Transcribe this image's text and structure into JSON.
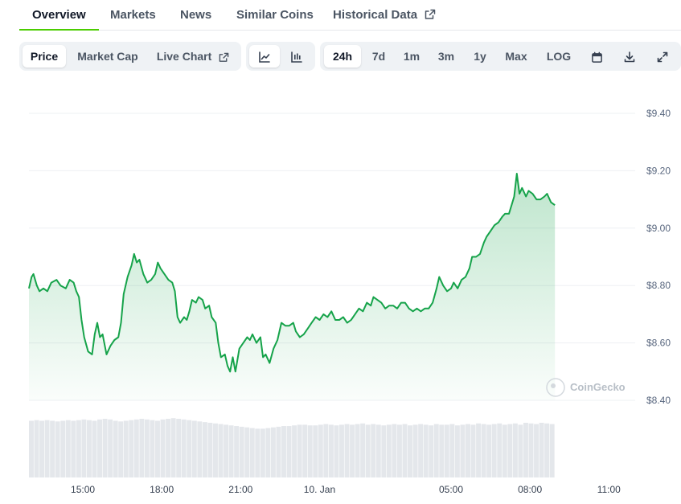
{
  "tabs": [
    {
      "label": "Overview",
      "active": true
    },
    {
      "label": "Markets"
    },
    {
      "label": "News"
    },
    {
      "label": "Similar Coins"
    },
    {
      "label": "Historical Data",
      "icon": "external-link-icon"
    }
  ],
  "toolbar": {
    "metric": [
      {
        "label": "Price",
        "active": true
      },
      {
        "label": "Market Cap"
      },
      {
        "label": "Live Chart",
        "icon": "external-link-icon"
      }
    ],
    "chart_types": [
      {
        "icon": "line-chart-icon",
        "active": true
      },
      {
        "icon": "candlestick-chart-icon"
      }
    ],
    "ranges": [
      {
        "label": "24h",
        "active": true
      },
      {
        "label": "7d"
      },
      {
        "label": "1m"
      },
      {
        "label": "3m"
      },
      {
        "label": "1y"
      },
      {
        "label": "Max"
      },
      {
        "label": "LOG"
      }
    ],
    "actions": [
      "calendar-icon",
      "download-icon",
      "fullscreen-icon"
    ]
  },
  "watermark": "CoinGecko",
  "colors": {
    "line": "#16a34a",
    "accent_tab": "#4bcc00",
    "volume": "#e4e7eb"
  },
  "chart_data": {
    "type": "area",
    "ylim": [
      8.4,
      9.4
    ],
    "y_ticks": [
      "$9.40",
      "$9.20",
      "$9.00",
      "$8.80",
      "$8.60",
      "$8.40"
    ],
    "y_tick_values": [
      9.4,
      9.2,
      9.0,
      8.8,
      8.6,
      8.4
    ],
    "x_range": [
      12.95,
      36.0
    ],
    "x_ticks": [
      {
        "label": "15:00",
        "t": 15
      },
      {
        "label": "18:00",
        "t": 18
      },
      {
        "label": "21:00",
        "t": 21
      },
      {
        "label": "10. Jan",
        "t": 24
      },
      {
        "label": "05:00",
        "t": 29
      },
      {
        "label": "08:00",
        "t": 32
      },
      {
        "label": "11:00",
        "t": 35
      }
    ],
    "grid": true,
    "series": [
      {
        "values": [
          [
            12.95,
            8.79
          ],
          [
            13.05,
            8.83
          ],
          [
            13.12,
            8.84
          ],
          [
            13.25,
            8.8
          ],
          [
            13.35,
            8.78
          ],
          [
            13.5,
            8.79
          ],
          [
            13.65,
            8.78
          ],
          [
            13.8,
            8.81
          ],
          [
            14.0,
            8.82
          ],
          [
            14.15,
            8.8
          ],
          [
            14.35,
            8.79
          ],
          [
            14.5,
            8.82
          ],
          [
            14.65,
            8.81
          ],
          [
            14.75,
            8.78
          ],
          [
            14.85,
            8.76
          ],
          [
            14.95,
            8.68
          ],
          [
            15.05,
            8.62
          ],
          [
            15.2,
            8.57
          ],
          [
            15.35,
            8.56
          ],
          [
            15.45,
            8.63
          ],
          [
            15.55,
            8.67
          ],
          [
            15.65,
            8.62
          ],
          [
            15.75,
            8.63
          ],
          [
            15.9,
            8.56
          ],
          [
            16.05,
            8.59
          ],
          [
            16.2,
            8.61
          ],
          [
            16.35,
            8.62
          ],
          [
            16.45,
            8.67
          ],
          [
            16.55,
            8.77
          ],
          [
            16.7,
            8.83
          ],
          [
            16.85,
            8.87
          ],
          [
            16.95,
            8.91
          ],
          [
            17.05,
            8.88
          ],
          [
            17.15,
            8.89
          ],
          [
            17.3,
            8.84
          ],
          [
            17.45,
            8.81
          ],
          [
            17.6,
            8.82
          ],
          [
            17.75,
            8.84
          ],
          [
            17.85,
            8.88
          ],
          [
            17.95,
            8.86
          ],
          [
            18.1,
            8.84
          ],
          [
            18.25,
            8.82
          ],
          [
            18.4,
            8.81
          ],
          [
            18.5,
            8.78
          ],
          [
            18.6,
            8.69
          ],
          [
            18.7,
            8.67
          ],
          [
            18.85,
            8.69
          ],
          [
            18.95,
            8.68
          ],
          [
            19.05,
            8.71
          ],
          [
            19.15,
            8.75
          ],
          [
            19.3,
            8.74
          ],
          [
            19.4,
            8.76
          ],
          [
            19.55,
            8.75
          ],
          [
            19.65,
            8.72
          ],
          [
            19.8,
            8.73
          ],
          [
            19.9,
            8.69
          ],
          [
            20.05,
            8.67
          ],
          [
            20.15,
            8.6
          ],
          [
            20.25,
            8.55
          ],
          [
            20.4,
            8.56
          ],
          [
            20.5,
            8.52
          ],
          [
            20.6,
            8.5
          ],
          [
            20.7,
            8.55
          ],
          [
            20.8,
            8.5
          ],
          [
            20.95,
            8.58
          ],
          [
            21.1,
            8.6
          ],
          [
            21.25,
            8.62
          ],
          [
            21.35,
            8.61
          ],
          [
            21.45,
            8.63
          ],
          [
            21.6,
            8.6
          ],
          [
            21.75,
            8.62
          ],
          [
            21.85,
            8.55
          ],
          [
            21.95,
            8.56
          ],
          [
            22.1,
            8.53
          ],
          [
            22.25,
            8.58
          ],
          [
            22.4,
            8.61
          ],
          [
            22.55,
            8.67
          ],
          [
            22.7,
            8.66
          ],
          [
            22.85,
            8.66
          ],
          [
            23.0,
            8.67
          ],
          [
            23.1,
            8.64
          ],
          [
            23.25,
            8.62
          ],
          [
            23.4,
            8.63
          ],
          [
            23.55,
            8.65
          ],
          [
            23.7,
            8.67
          ],
          [
            23.85,
            8.69
          ],
          [
            24.0,
            8.68
          ],
          [
            24.15,
            8.7
          ],
          [
            24.3,
            8.69
          ],
          [
            24.45,
            8.71
          ],
          [
            24.6,
            8.68
          ],
          [
            24.75,
            8.68
          ],
          [
            24.9,
            8.69
          ],
          [
            25.05,
            8.67
          ],
          [
            25.2,
            8.68
          ],
          [
            25.35,
            8.7
          ],
          [
            25.5,
            8.72
          ],
          [
            25.65,
            8.71
          ],
          [
            25.8,
            8.74
          ],
          [
            25.95,
            8.73
          ],
          [
            26.05,
            8.76
          ],
          [
            26.2,
            8.75
          ],
          [
            26.35,
            8.74
          ],
          [
            26.5,
            8.72
          ],
          [
            26.65,
            8.73
          ],
          [
            26.8,
            8.73
          ],
          [
            26.95,
            8.72
          ],
          [
            27.1,
            8.74
          ],
          [
            27.25,
            8.74
          ],
          [
            27.4,
            8.72
          ],
          [
            27.55,
            8.71
          ],
          [
            27.7,
            8.72
          ],
          [
            27.85,
            8.71
          ],
          [
            28.0,
            8.72
          ],
          [
            28.15,
            8.72
          ],
          [
            28.3,
            8.74
          ],
          [
            28.45,
            8.79
          ],
          [
            28.55,
            8.83
          ],
          [
            28.7,
            8.8
          ],
          [
            28.85,
            8.78
          ],
          [
            29.0,
            8.79
          ],
          [
            29.1,
            8.81
          ],
          [
            29.25,
            8.79
          ],
          [
            29.4,
            8.82
          ],
          [
            29.55,
            8.83
          ],
          [
            29.7,
            8.86
          ],
          [
            29.8,
            8.9
          ],
          [
            29.95,
            8.9
          ],
          [
            30.1,
            8.91
          ],
          [
            30.25,
            8.95
          ],
          [
            30.35,
            8.97
          ],
          [
            30.5,
            8.99
          ],
          [
            30.65,
            9.01
          ],
          [
            30.8,
            9.02
          ],
          [
            30.95,
            9.04
          ],
          [
            31.05,
            9.05
          ],
          [
            31.2,
            9.05
          ],
          [
            31.3,
            9.08
          ],
          [
            31.4,
            9.11
          ],
          [
            31.5,
            9.19
          ],
          [
            31.6,
            9.12
          ],
          [
            31.7,
            9.14
          ],
          [
            31.85,
            9.11
          ],
          [
            31.95,
            9.13
          ],
          [
            32.1,
            9.12
          ],
          [
            32.25,
            9.1
          ],
          [
            32.4,
            9.1
          ],
          [
            32.55,
            9.11
          ],
          [
            32.65,
            9.12
          ],
          [
            32.8,
            9.09
          ],
          [
            32.95,
            9.08
          ]
        ]
      }
    ],
    "volume": {
      "note_scale": "relative",
      "values": [
        0.86,
        0.87,
        0.86,
        0.87,
        0.86,
        0.85,
        0.86,
        0.87,
        0.86,
        0.87,
        0.88,
        0.87,
        0.86,
        0.88,
        0.89,
        0.88,
        0.86,
        0.85,
        0.86,
        0.87,
        0.88,
        0.89,
        0.88,
        0.87,
        0.86,
        0.88,
        0.89,
        0.9,
        0.89,
        0.88,
        0.87,
        0.86,
        0.85,
        0.84,
        0.83,
        0.82,
        0.81,
        0.8,
        0.79,
        0.78,
        0.77,
        0.76,
        0.75,
        0.74,
        0.74,
        0.75,
        0.76,
        0.77,
        0.78,
        0.78,
        0.79,
        0.8,
        0.8,
        0.79,
        0.79,
        0.8,
        0.81,
        0.8,
        0.79,
        0.8,
        0.81,
        0.8,
        0.81,
        0.82,
        0.8,
        0.81,
        0.8,
        0.79,
        0.8,
        0.81,
        0.8,
        0.81,
        0.79,
        0.8,
        0.81,
        0.8,
        0.79,
        0.81,
        0.8,
        0.8,
        0.81,
        0.79,
        0.8,
        0.81,
        0.8,
        0.82,
        0.81,
        0.8,
        0.81,
        0.82,
        0.8,
        0.81,
        0.82,
        0.8,
        0.83,
        0.82,
        0.81,
        0.83,
        0.82,
        0.81
      ]
    }
  }
}
